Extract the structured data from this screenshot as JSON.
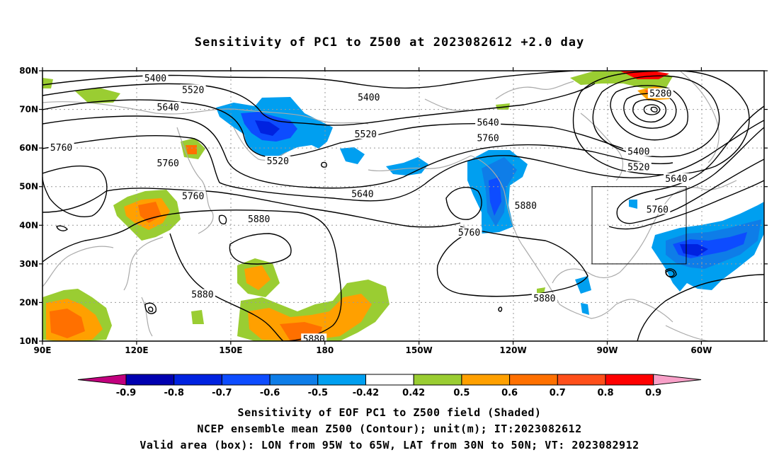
{
  "title": "Sensitivity of PC1 to Z500 at 2023082612 +2.0 day",
  "map": {
    "lon_ticks": [
      {
        "lon": 90,
        "label": "90E"
      },
      {
        "lon": 120,
        "label": "120E"
      },
      {
        "lon": 150,
        "label": "150E"
      },
      {
        "lon": 180,
        "label": "180"
      },
      {
        "lon": 210,
        "label": "150W"
      },
      {
        "lon": 240,
        "label": "120W"
      },
      {
        "lon": 270,
        "label": "90W"
      },
      {
        "lon": 300,
        "label": "60W"
      }
    ],
    "lat_ticks": [
      {
        "lat": 10,
        "label": "10N"
      },
      {
        "lat": 20,
        "label": "20N"
      },
      {
        "lat": 30,
        "label": "30N"
      },
      {
        "lat": 40,
        "label": "40N"
      },
      {
        "lat": 50,
        "label": "50N"
      },
      {
        "lat": 60,
        "label": "60N"
      },
      {
        "lat": 70,
        "label": "70N"
      },
      {
        "lat": 80,
        "label": "80N"
      }
    ],
    "lon_range": [
      90,
      320
    ],
    "lat_range": [
      10,
      80
    ],
    "grid": "dotted",
    "valid_box": {
      "lon_min": 265,
      "lon_max": 295,
      "lat_min": 30,
      "lat_max": 50
    },
    "contour_labels": [
      {
        "text": "5400",
        "lon": 126,
        "lat": 78
      },
      {
        "text": "5520",
        "lon": 138,
        "lat": 75
      },
      {
        "text": "5640",
        "lon": 130,
        "lat": 70.5
      },
      {
        "text": "5760",
        "lon": 96,
        "lat": 60
      },
      {
        "text": "5760",
        "lon": 130,
        "lat": 56
      },
      {
        "text": "5760",
        "lon": 138,
        "lat": 47.5
      },
      {
        "text": "5880",
        "lon": 159,
        "lat": 41.5
      },
      {
        "text": "5880",
        "lon": 141,
        "lat": 22
      },
      {
        "text": "5880",
        "lon": 176.5,
        "lat": 10.5
      },
      {
        "text": "5400",
        "lon": 194,
        "lat": 73
      },
      {
        "text": "5520",
        "lon": 193,
        "lat": 63.5
      },
      {
        "text": "5520",
        "lon": 165,
        "lat": 56.5
      },
      {
        "text": "5640",
        "lon": 192,
        "lat": 48
      },
      {
        "text": "5760",
        "lon": 226,
        "lat": 38
      },
      {
        "text": "5640",
        "lon": 232,
        "lat": 66.5
      },
      {
        "text": "5760",
        "lon": 232,
        "lat": 62.5
      },
      {
        "text": "5880",
        "lon": 244,
        "lat": 45
      },
      {
        "text": "5880",
        "lon": 250,
        "lat": 21
      },
      {
        "text": "5280",
        "lon": 287,
        "lat": 74
      },
      {
        "text": "5400",
        "lon": 280,
        "lat": 59
      },
      {
        "text": "5520",
        "lon": 280,
        "lat": 55
      },
      {
        "text": "5640",
        "lon": 292,
        "lat": 52
      },
      {
        "text": "5760",
        "lon": 286,
        "lat": 44
      }
    ]
  },
  "colorbar": {
    "labels": [
      "-0.9",
      "-0.8",
      "-0.7",
      "-0.6",
      "-0.5",
      "-0.42",
      "0.42",
      "0.5",
      "0.6",
      "0.7",
      "0.8",
      "0.9"
    ],
    "colors": [
      "#0000b0",
      "#0022e0",
      "#0d4cff",
      "#0e7de8",
      "#009ff0",
      "#ffffff",
      "#9acd32",
      "#ffa000",
      "#ff7000",
      "#ff4f1a",
      "#ff0000"
    ],
    "low_extend_color": "#c2007e",
    "high_extend_color": "#f8a0c8"
  },
  "captions": {
    "line1": "Sensitivity of EOF PC1 to Z500 field (Shaded)",
    "line2": "NCEP ensemble mean Z500 (Contour); unit(m); IT:2023082612",
    "line3": "Valid area (box): LON from 95W to 65W, LAT from 30N to 50N; VT: 2023082912"
  }
}
